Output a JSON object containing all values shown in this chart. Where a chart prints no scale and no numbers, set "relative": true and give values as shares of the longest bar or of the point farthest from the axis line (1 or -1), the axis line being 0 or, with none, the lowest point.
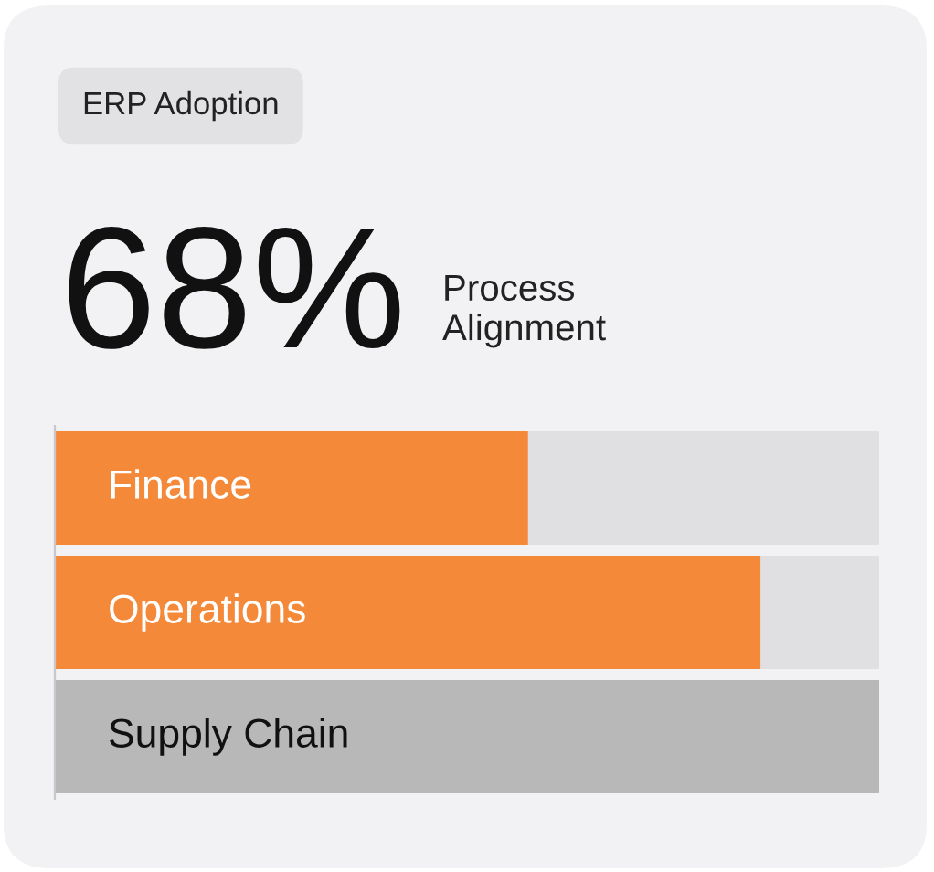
{
  "chart_data": {
    "type": "bar",
    "orientation": "horizontal",
    "relative": true,
    "title": "ERP Adoption",
    "subtitle": "Process Alignment",
    "annotations": [
      "68%"
    ],
    "categories": [
      "Finance",
      "Operations",
      "Supply Chain"
    ],
    "values": [
      0.574,
      0.856,
      1.0
    ],
    "colors": [
      "#f5893a",
      "#f5893a",
      "#b8b8b8"
    ]
  }
}
